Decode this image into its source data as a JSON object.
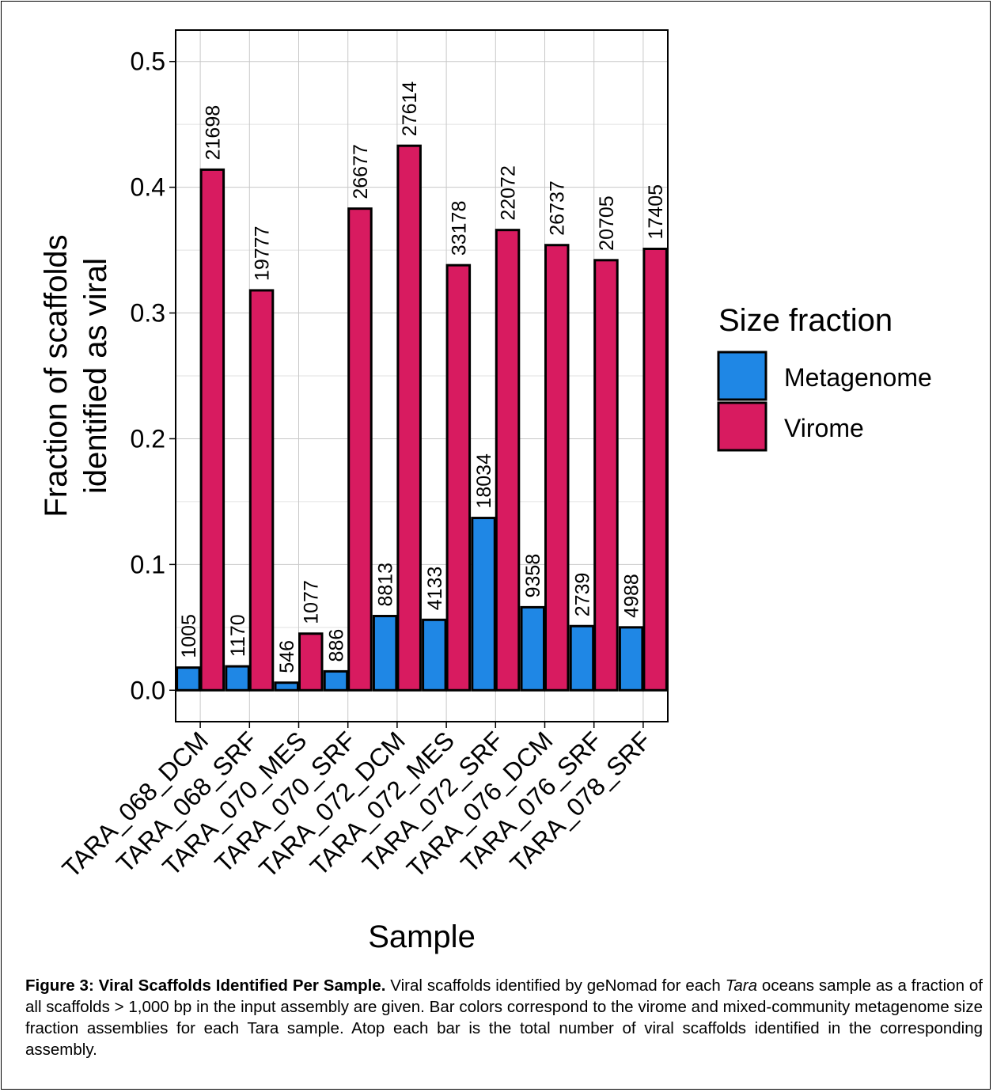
{
  "chart_data": {
    "type": "bar",
    "xlabel": "Sample",
    "ylabel": [
      "Fraction of scaffolds",
      "identified as viral"
    ],
    "ylim": [
      -0.025,
      0.525
    ],
    "yticks": [
      0.0,
      0.1,
      0.2,
      0.3,
      0.4,
      0.5
    ],
    "ytick_labels": [
      "0.0",
      "0.1",
      "0.2",
      "0.3",
      "0.4",
      "0.5"
    ],
    "grid": true,
    "legend": {
      "title": "Size fraction",
      "placement": "right"
    },
    "categories": [
      "TARA_068_DCM",
      "TARA_068_SRF",
      "TARA_070_MES",
      "TARA_070_SRF",
      "TARA_072_DCM",
      "TARA_072_MES",
      "TARA_072_SRF",
      "TARA_076_DCM",
      "TARA_076_SRF",
      "TARA_078_SRF"
    ],
    "series": [
      {
        "name": "Metagenome",
        "color": "#1f87e5",
        "values": [
          0.018,
          0.019,
          0.006,
          0.015,
          0.059,
          0.056,
          0.137,
          0.066,
          0.051,
          0.05
        ],
        "labels": [
          "1005",
          "1170",
          "546",
          "886",
          "8813",
          "4133",
          "18034",
          "9358",
          "2739",
          "4988"
        ]
      },
      {
        "name": "Virome",
        "color": "#d81b60",
        "values": [
          0.414,
          0.318,
          0.045,
          0.383,
          0.433,
          0.338,
          0.366,
          0.354,
          0.342,
          0.351
        ],
        "labels": [
          "21698",
          "19777",
          "1077",
          "26677",
          "27614",
          "33178",
          "22072",
          "26737",
          "20705",
          "17405"
        ]
      }
    ]
  },
  "caption": {
    "label": "Figure 3: Viral Scaffolds Identified Per Sample.",
    "text_a": " Viral scaffolds identified by geNomad for each ",
    "italic": "Tara",
    "text_b": " oceans sample as a fraction of all scaffolds > 1,000 bp in the input assembly are given. Bar colors correspond to the virome and mixed-community metagenome size fraction assemblies for each Tara sample. Atop each bar is the total number of viral scaffolds identified in the corresponding assembly."
  }
}
